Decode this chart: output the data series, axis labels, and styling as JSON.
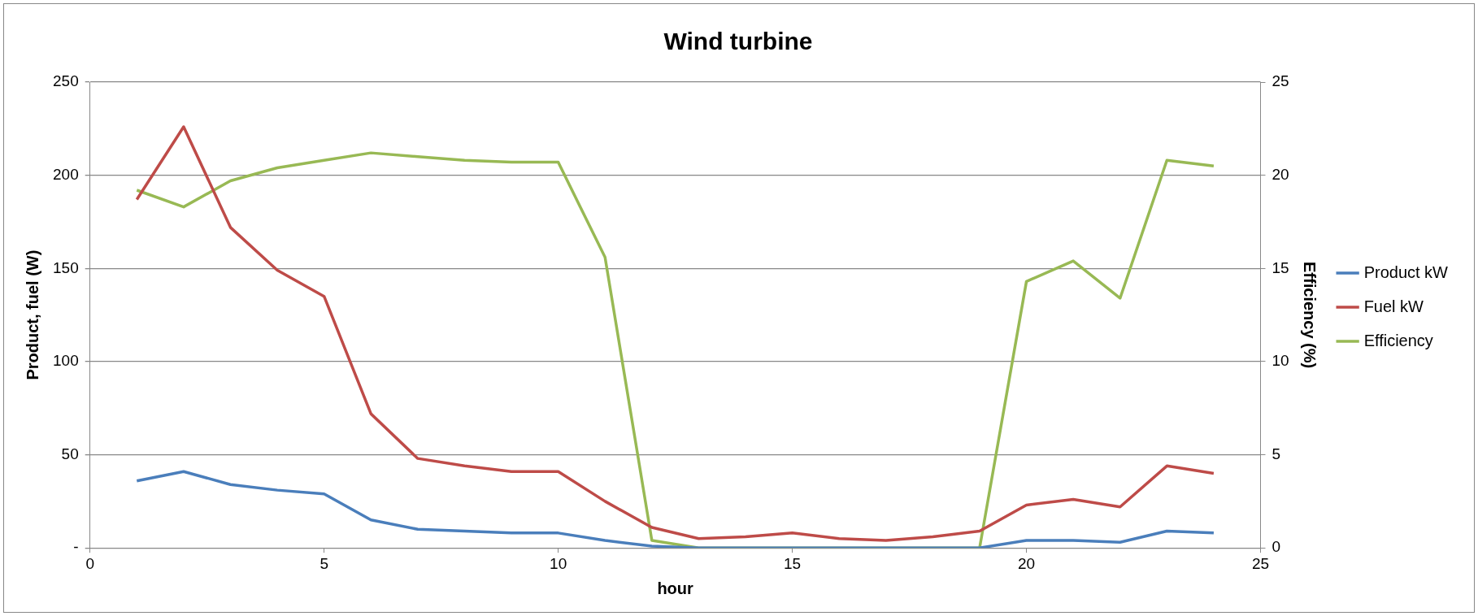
{
  "chart_data": {
    "type": "line",
    "title": "Wind turbine",
    "xlabel": "hour",
    "ylabel": "Product, fuel (W)",
    "y2label": "Efficiency (%)",
    "x": [
      1,
      2,
      3,
      4,
      5,
      6,
      7,
      8,
      9,
      10,
      11,
      12,
      13,
      14,
      15,
      16,
      17,
      18,
      19,
      20,
      21,
      22,
      23,
      24
    ],
    "xlim": [
      0,
      25
    ],
    "xticks": [
      0,
      5,
      10,
      15,
      20,
      25
    ],
    "ylim": [
      0,
      250
    ],
    "yticks": [
      {
        "value": 0,
        "label": "-"
      },
      50,
      100,
      150,
      200,
      250
    ],
    "y2lim": [
      0,
      25
    ],
    "y2ticks": [
      0,
      5,
      10,
      15,
      20,
      25
    ],
    "grid": "y",
    "legend": "right",
    "marker": "none",
    "line_style": "solid",
    "series": [
      {
        "name": "Product kW",
        "color": "#4a7ebb",
        "values": [
          36,
          41,
          34,
          31,
          29,
          15,
          10,
          9,
          8,
          8,
          4,
          1,
          0,
          0,
          0,
          0,
          0,
          0,
          0,
          4,
          4,
          3,
          9,
          8
        ]
      },
      {
        "name": "Fuel kW",
        "color": "#be4b48",
        "values": [
          187,
          226,
          172,
          149,
          135,
          72,
          48,
          44,
          41,
          41,
          25,
          11,
          5,
          6,
          8,
          5,
          4,
          6,
          9,
          23,
          26,
          22,
          44,
          40
        ]
      },
      {
        "name": "Efficiency",
        "color": "#98b954",
        "axis": "y2",
        "values": [
          19.2,
          18.3,
          19.7,
          20.4,
          20.8,
          21.2,
          21.0,
          20.8,
          20.7,
          20.7,
          15.6,
          0.4,
          0,
          0,
          0,
          0,
          0,
          0,
          0,
          14.3,
          15.4,
          13.4,
          20.8,
          20.5
        ]
      }
    ]
  }
}
